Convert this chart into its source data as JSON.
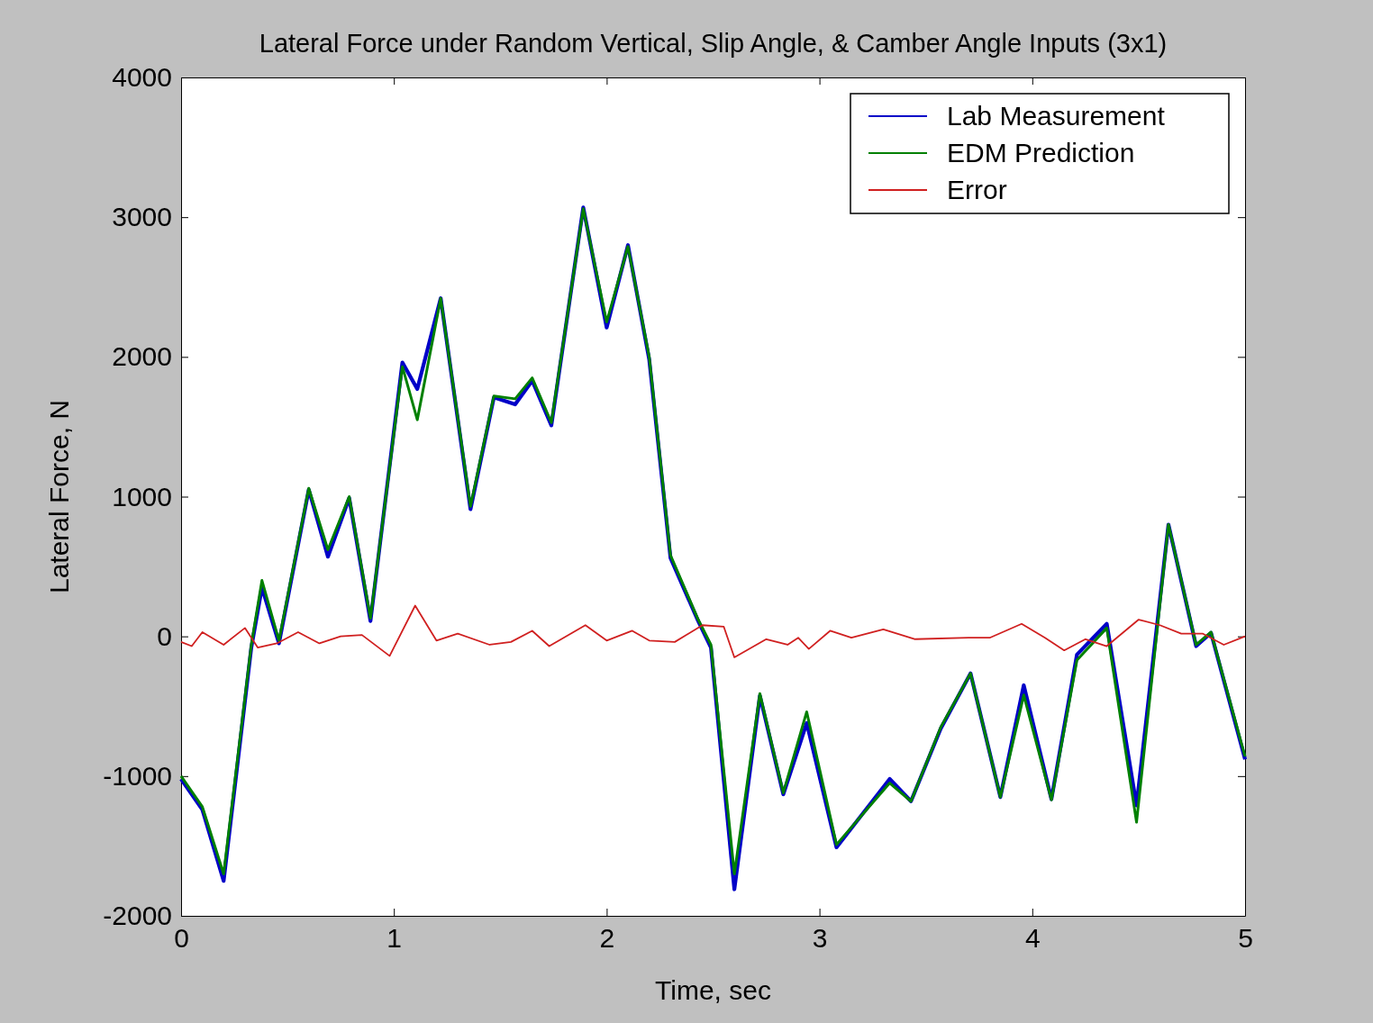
{
  "chart_data": {
    "type": "line",
    "title": "Lateral Force under Random Vertical, Slip Angle, & Camber Angle Inputs (3x1)",
    "xlabel": "Time, sec",
    "ylabel": "Lateral Force, N",
    "xlim": [
      0,
      5
    ],
    "ylim": [
      -2000,
      4000
    ],
    "xticks": [
      0,
      1,
      2,
      3,
      4,
      5
    ],
    "yticks": [
      -2000,
      -1000,
      0,
      1000,
      2000,
      3000,
      4000
    ],
    "legend": "top right",
    "grid": false,
    "x": [
      0,
      0.1,
      0.2,
      0.33,
      0.38,
      0.46,
      0.6,
      0.69,
      0.79,
      0.89,
      1.04,
      1.11,
      1.22,
      1.36,
      1.47,
      1.57,
      1.65,
      1.74,
      1.89,
      2.0,
      2.1,
      2.2,
      2.3,
      2.43,
      2.49,
      2.6,
      2.72,
      2.83,
      2.94,
      3.08,
      3.33,
      3.43,
      3.57,
      3.71,
      3.85,
      3.96,
      4.09,
      4.21,
      4.35,
      4.49,
      4.64,
      4.77,
      4.84,
      5.0
    ],
    "series": [
      {
        "name": "Lab Measurement",
        "color": "#0000c8",
        "values": [
          -1020,
          -1240,
          -1750,
          -80,
          350,
          -50,
          1050,
          570,
          990,
          110,
          1960,
          1770,
          2420,
          910,
          1710,
          1660,
          1830,
          1510,
          3070,
          2210,
          2800,
          1980,
          560,
          110,
          -80,
          -1810,
          -425,
          -1130,
          -620,
          -1510,
          -1020,
          -1180,
          -660,
          -265,
          -1150,
          -350,
          -1165,
          -130,
          90,
          -1210,
          800,
          -70,
          25,
          -880
        ]
      },
      {
        "name": "EDM Prediction",
        "color": "#008000",
        "values": [
          -1000,
          -1220,
          -1700,
          -60,
          400,
          -30,
          1060,
          620,
          1000,
          130,
          1930,
          1550,
          2420,
          930,
          1720,
          1700,
          1850,
          1530,
          3060,
          2250,
          2790,
          2000,
          580,
          120,
          -60,
          -1700,
          -410,
          -1120,
          -540,
          -1490,
          -1050,
          -1180,
          -650,
          -265,
          -1150,
          -420,
          -1170,
          -170,
          60,
          -1330,
          800,
          -60,
          30,
          -860
        ]
      },
      {
        "name": "Error",
        "color": "#d02020",
        "x": [
          0,
          0.05,
          0.1,
          0.2,
          0.3,
          0.36,
          0.45,
          0.55,
          0.65,
          0.75,
          0.85,
          0.98,
          1.1,
          1.2,
          1.3,
          1.45,
          1.55,
          1.65,
          1.73,
          1.9,
          2.0,
          2.12,
          2.2,
          2.32,
          2.45,
          2.55,
          2.6,
          2.75,
          2.85,
          2.9,
          2.95,
          3.05,
          3.15,
          3.3,
          3.45,
          3.7,
          3.8,
          3.95,
          4.06,
          4.15,
          4.25,
          4.35,
          4.5,
          4.6,
          4.7,
          4.8,
          4.9,
          5.0
        ],
        "values": [
          -40,
          -70,
          30,
          -60,
          60,
          -80,
          -50,
          30,
          -50,
          0,
          10,
          -140,
          220,
          -30,
          20,
          -60,
          -40,
          40,
          -70,
          80,
          -30,
          40,
          -30,
          -40,
          80,
          70,
          -150,
          -20,
          -60,
          -10,
          -90,
          40,
          -10,
          50,
          -20,
          -10,
          -10,
          90,
          -10,
          -100,
          -20,
          -70,
          120,
          80,
          20,
          20,
          -60,
          0
        ]
      }
    ]
  }
}
